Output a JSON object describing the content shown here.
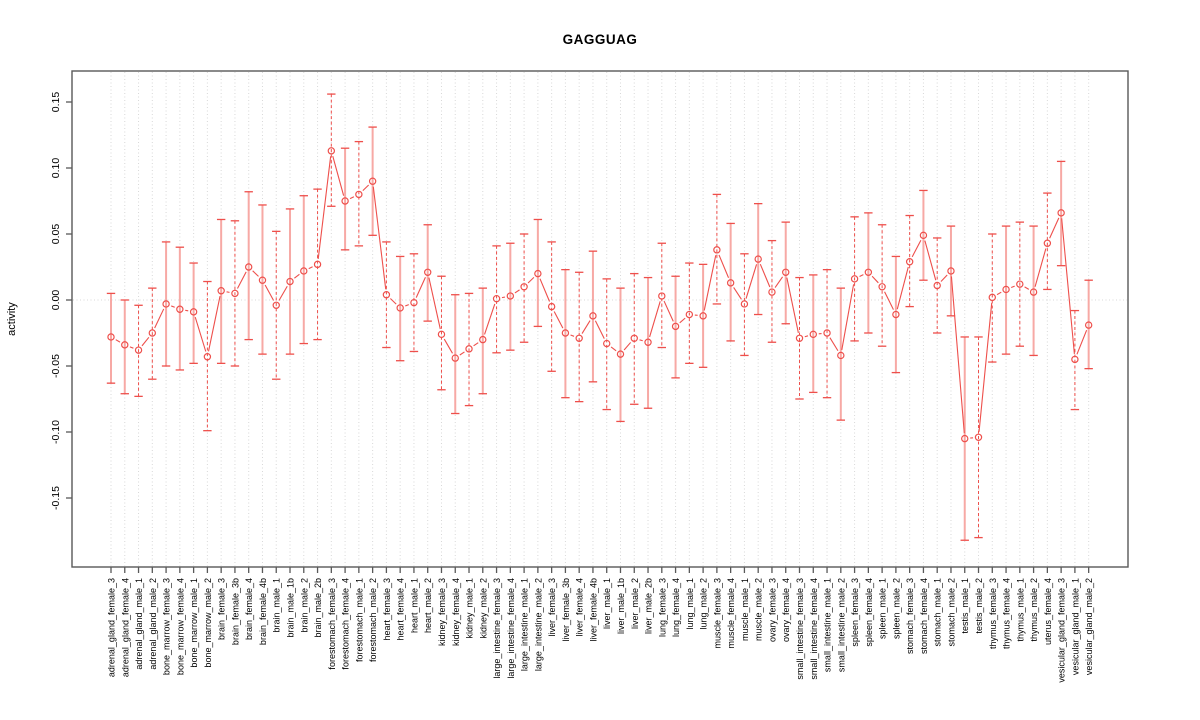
{
  "chart_data": {
    "type": "scatter",
    "title": "GAGGUAG",
    "ylabel": "activity",
    "xlabel": "",
    "legend_position": "none",
    "grid": "vertical-dotted-per-category-plus-dotted-zero-line",
    "ylim": [
      -0.2,
      0.175
    ],
    "yticks": [
      0.15,
      0.1,
      0.05,
      0.0,
      -0.05,
      -0.1,
      -0.15
    ],
    "ytick_labels": [
      "0.15",
      "0.10",
      "0.05",
      "0.00",
      "-0.05",
      "-0.10",
      "-0.15"
    ],
    "marker": "open-circle",
    "error_bars": true,
    "colors": {
      "point": "#ee4f4b",
      "stem_solid": "#f7a9a5",
      "stem_dashed": "#ee4f4b",
      "grid": "#d8d8d8",
      "axis": "#595959",
      "text": "#000000"
    },
    "categories": [
      "adrenal_gland_female_3",
      "adrenal_gland_female_4",
      "adrenal_gland_male_1",
      "adrenal_gland_male_2",
      "bone_marrow_female_3",
      "bone_marrow_female_4",
      "bone_marrow_male_1",
      "bone_marrow_male_2",
      "brain_female_3",
      "brain_female_3b",
      "brain_female_4",
      "brain_female_4b",
      "brain_male_1",
      "brain_male_1b",
      "brain_male_2",
      "brain_male_2b",
      "forestomach_female_3",
      "forestomach_female_4",
      "forestomach_male_1",
      "forestomach_male_2",
      "heart_female_3",
      "heart_female_4",
      "heart_male_1",
      "heart_male_2",
      "kidney_female_3",
      "kidney_female_4",
      "kidney_male_1",
      "kidney_male_2",
      "large_intestine_female_3",
      "large_intestine_female_4",
      "large_intestine_male_1",
      "large_intestine_male_2",
      "liver_female_3",
      "liver_female_3b",
      "liver_female_4",
      "liver_female_4b",
      "liver_male_1",
      "liver_male_1b",
      "liver_male_2",
      "liver_male_2b",
      "lung_female_3",
      "lung_female_4",
      "lung_male_1",
      "lung_male_2",
      "muscle_female_3",
      "muscle_female_4",
      "muscle_male_1",
      "muscle_male_2",
      "ovary_female_3",
      "ovary_female_4",
      "small_intestine_female_3",
      "small_intestine_female_4",
      "small_intestine_male_1",
      "small_intestine_male_2",
      "spleen_female_3",
      "spleen_female_4",
      "spleen_male_1",
      "spleen_male_2",
      "stomach_female_3",
      "stomach_female_4",
      "stomach_male_1",
      "stomach_male_2",
      "testis_male_1",
      "testis_male_2",
      "thymus_female_3",
      "thymus_female_4",
      "thymus_male_1",
      "thymus_male_2",
      "uterus_female_4",
      "vesicular_gland_female_3",
      "vesicular_gland_male_1",
      "vesicular_gland_male_2"
    ],
    "series": [
      {
        "name": "activity",
        "values": [
          -0.028,
          -0.034,
          -0.038,
          -0.025,
          -0.003,
          -0.007,
          -0.009,
          -0.043,
          0.007,
          0.005,
          0.025,
          0.015,
          -0.004,
          0.014,
          0.022,
          0.027,
          0.113,
          0.075,
          0.08,
          0.09,
          0.004,
          -0.006,
          -0.002,
          0.021,
          -0.026,
          -0.044,
          -0.037,
          -0.03,
          0.001,
          0.003,
          0.01,
          0.02,
          -0.005,
          -0.025,
          -0.029,
          -0.012,
          -0.033,
          -0.041,
          -0.029,
          -0.032,
          0.003,
          -0.02,
          -0.011,
          -0.012,
          0.038,
          0.013,
          -0.003,
          0.031,
          0.006,
          0.021,
          -0.029,
          -0.026,
          -0.025,
          -0.042,
          0.016,
          0.021,
          0.01,
          -0.011,
          0.029,
          0.049,
          0.011,
          0.022,
          -0.105,
          -0.104,
          0.002,
          0.008,
          0.012,
          0.006,
          0.043,
          0.066,
          -0.045,
          -0.019
        ],
        "ci_high": [
          0.005,
          0.0,
          -0.004,
          0.009,
          0.044,
          0.04,
          0.028,
          0.014,
          0.061,
          0.06,
          0.082,
          0.072,
          0.052,
          0.069,
          0.079,
          0.084,
          0.156,
          0.115,
          0.12,
          0.131,
          0.044,
          0.033,
          0.035,
          0.057,
          0.018,
          0.004,
          0.005,
          0.009,
          0.041,
          0.043,
          0.05,
          0.061,
          0.044,
          0.023,
          0.021,
          0.037,
          0.016,
          0.009,
          0.02,
          0.017,
          0.043,
          0.018,
          0.028,
          0.027,
          0.08,
          0.058,
          0.035,
          0.073,
          0.045,
          0.059,
          0.017,
          0.019,
          0.023,
          0.009,
          0.063,
          0.066,
          0.057,
          0.033,
          0.064,
          0.083,
          0.047,
          0.056,
          -0.028,
          -0.028,
          0.05,
          0.056,
          0.059,
          0.056,
          0.081,
          0.105,
          -0.008,
          0.015
        ],
        "ci_low": [
          -0.063,
          -0.071,
          -0.073,
          -0.06,
          -0.05,
          -0.053,
          -0.048,
          -0.099,
          -0.048,
          -0.05,
          -0.03,
          -0.041,
          -0.06,
          -0.041,
          -0.033,
          -0.03,
          0.071,
          0.038,
          0.041,
          0.049,
          -0.036,
          -0.046,
          -0.039,
          -0.016,
          -0.068,
          -0.086,
          -0.08,
          -0.071,
          -0.04,
          -0.038,
          -0.032,
          -0.02,
          -0.054,
          -0.074,
          -0.077,
          -0.062,
          -0.083,
          -0.092,
          -0.079,
          -0.082,
          -0.036,
          -0.059,
          -0.048,
          -0.051,
          -0.003,
          -0.031,
          -0.042,
          -0.011,
          -0.032,
          -0.018,
          -0.075,
          -0.07,
          -0.074,
          -0.091,
          -0.031,
          -0.025,
          -0.035,
          -0.055,
          -0.005,
          0.015,
          -0.025,
          -0.012,
          -0.182,
          -0.18,
          -0.047,
          -0.041,
          -0.035,
          -0.042,
          0.008,
          0.026,
          -0.083,
          -0.052
        ],
        "stem_style": [
          "solid",
          "solid",
          "dashed",
          "dashed",
          "solid",
          "solid",
          "solid",
          "dashed",
          "solid",
          "dashed",
          "solid",
          "solid",
          "dashed",
          "solid",
          "solid",
          "dashed",
          "dashed",
          "solid",
          "dashed",
          "solid",
          "dashed",
          "solid",
          "dashed",
          "solid",
          "dashed",
          "solid",
          "dashed",
          "solid",
          "dashed",
          "solid",
          "dashed",
          "solid",
          "dashed",
          "solid",
          "dashed",
          "solid",
          "dashed",
          "solid",
          "dashed",
          "solid",
          "dashed",
          "solid",
          "dashed",
          "solid",
          "dashed",
          "solid",
          "dashed",
          "solid",
          "dashed",
          "solid",
          "dashed",
          "solid",
          "dashed",
          "solid",
          "dashed",
          "solid",
          "dashed",
          "solid",
          "dashed",
          "solid",
          "dashed",
          "solid",
          "solid",
          "dashed",
          "dashed",
          "solid",
          "dashed",
          "solid",
          "dashed",
          "solid",
          "dashed",
          "solid"
        ]
      }
    ]
  }
}
